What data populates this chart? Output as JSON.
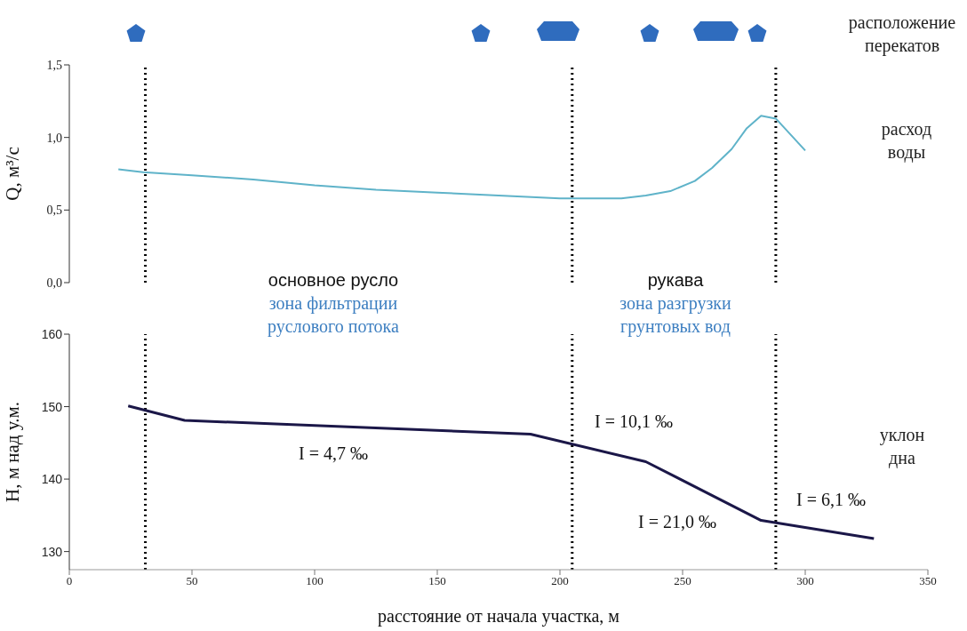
{
  "chart_data": [
    {
      "type": "line",
      "ylabel": "Q, м³/с",
      "x": [
        20,
        30,
        50,
        75,
        100,
        125,
        150,
        175,
        200,
        225,
        235,
        245,
        255,
        262,
        270,
        276,
        282,
        288,
        294,
        300
      ],
      "series": [
        {
          "color": "#5fb3c9",
          "values": [
            0.78,
            0.76,
            0.74,
            0.71,
            0.67,
            0.64,
            0.62,
            0.6,
            0.58,
            0.58,
            0.6,
            0.63,
            0.7,
            0.79,
            0.92,
            1.06,
            1.15,
            1.13,
            1.02,
            0.91
          ]
        }
      ],
      "xlim": [
        0,
        350
      ],
      "ylim": [
        0,
        1.5
      ],
      "yticks": [
        {
          "value": 0,
          "label": "0,0"
        },
        {
          "value": 0.5,
          "label": "0,5"
        },
        {
          "value": 1,
          "label": "1,0"
        },
        {
          "value": 1.5,
          "label": "1,5"
        }
      ],
      "tick_labels": "y",
      "marker": "none",
      "line_style": "solid",
      "ref_lines": [
        {
          "axis": "x",
          "value": 31,
          "color": "#000000",
          "line_style": "dotted"
        },
        {
          "axis": "x",
          "value": 205,
          "color": "#000000",
          "line_style": "dotted"
        },
        {
          "axis": "x",
          "value": 288,
          "color": "#000000",
          "line_style": "dotted"
        }
      ],
      "annotations": [
        "расположение перекатов",
        "расход воды",
        "основное русло",
        "рукава"
      ]
    },
    {
      "type": "line",
      "xlabel": "расстояние от начала участка, м",
      "ylabel": "Н, м над у.м.",
      "x": [
        24,
        47,
        188,
        235,
        282,
        328
      ],
      "series": [
        {
          "color": "#1b1748",
          "values": [
            150.1,
            148.1,
            146.2,
            142.4,
            134.3,
            131.8
          ]
        }
      ],
      "xlim": [
        0,
        350
      ],
      "xticks": [
        0,
        50,
        100,
        150,
        200,
        250,
        300,
        350
      ],
      "ylim": [
        127.5,
        160
      ],
      "yticks": [
        130,
        140,
        150,
        160
      ],
      "marker": "none",
      "line_style": "solid",
      "ref_lines": [
        {
          "axis": "x",
          "value": 31,
          "color": "#000000",
          "line_style": "dotted"
        },
        {
          "axis": "x",
          "value": 205,
          "color": "#000000",
          "line_style": "dotted"
        },
        {
          "axis": "x",
          "value": 288,
          "color": "#000000",
          "line_style": "dotted"
        }
      ],
      "annotations": [
        "зона фильтрации руслового потока",
        "зона разгрузки грунтовых вод",
        "уклон дна",
        "I = 4,7 ‰",
        "I = 10,1 ‰",
        "I = 21,0 ‰",
        "I = 6,1 ‰"
      ]
    }
  ]
}
